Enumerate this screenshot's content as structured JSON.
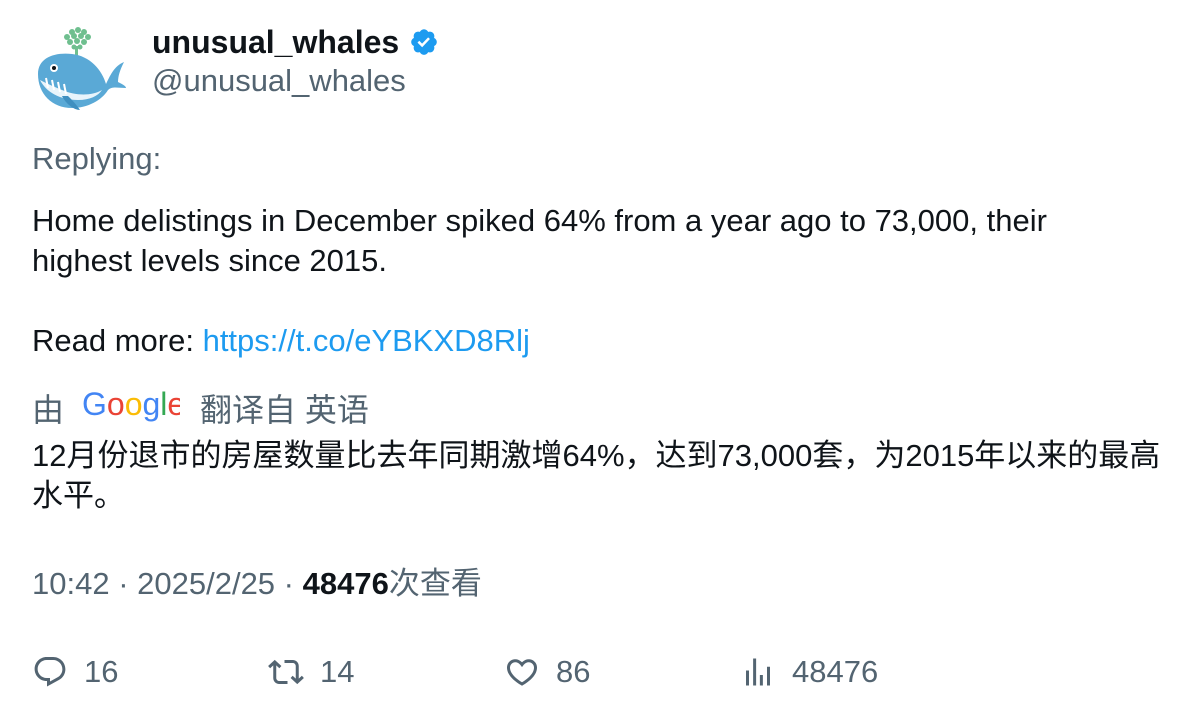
{
  "author": {
    "name": "unusual_whales",
    "handle": "@unusual_whales",
    "verified": true,
    "avatar_icon": "whale-icon"
  },
  "replying_label": "Replying:",
  "tweet": {
    "line1": "Home delistings in December spiked 64% from a year ago to 73,000, their highest levels since 2015.",
    "read_more_label": "Read more: ",
    "link_text": "https://t.co/eYBKXD8Rlj"
  },
  "translation": {
    "by_label": "由",
    "google_logo": "Google",
    "from_label": "翻译自 英语",
    "text": "12月份退市的房屋数量比去年同期激增64%，达到73,000套，为2015年以来的最高水平。"
  },
  "meta": {
    "time": "10:42",
    "separator": " · ",
    "date": "2025/2/25",
    "views_count": "48476",
    "views_label": "次查看"
  },
  "actions": {
    "replies": "16",
    "retweets": "14",
    "likes": "86",
    "views": "48476"
  },
  "colors": {
    "text": "#0f1419",
    "secondary": "#536471",
    "link": "#1d9bf0",
    "verified": "#1d9bf0"
  }
}
